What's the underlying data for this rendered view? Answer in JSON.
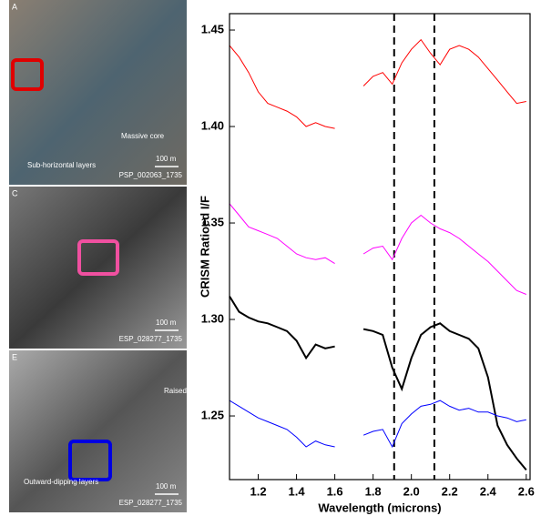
{
  "panels": [
    {
      "label": "A",
      "annotations": [
        "Massive core",
        "Sub-horizontal layers"
      ],
      "scale": "100 m",
      "image_id": "PSP_002063_1735",
      "box_color": "#e00000"
    },
    {
      "label": "C",
      "annotations": [],
      "scale": "100 m",
      "image_id": "ESP_028277_1735",
      "box_color": "#f050a0"
    },
    {
      "label": "E",
      "annotations": [
        "Raised rim",
        "Outward-dipping layers"
      ],
      "scale": "100 m",
      "image_id": "ESP_028277_1735",
      "box_color": "#0000e0"
    }
  ],
  "chart_data": {
    "type": "line",
    "xlabel": "Wavelength (microns)",
    "ylabel": "CRISM Ratioed I/F",
    "x": [
      1.05,
      1.1,
      1.15,
      1.2,
      1.25,
      1.3,
      1.35,
      1.4,
      1.45,
      1.5,
      1.55,
      1.6,
      1.65,
      1.7,
      1.75,
      1.8,
      1.85,
      1.9,
      1.95,
      2.0,
      2.05,
      2.1,
      2.15,
      2.2,
      2.25,
      2.3,
      2.35,
      2.4,
      2.45,
      2.5,
      2.55,
      2.6
    ],
    "series": [
      {
        "color": "#ff0000",
        "width": 1,
        "values": [
          1.442,
          1.436,
          1.428,
          1.418,
          1.412,
          1.41,
          1.408,
          1.405,
          1.4,
          1.402,
          1.4,
          1.399,
          null,
          null,
          1.421,
          1.426,
          1.428,
          1.422,
          1.433,
          1.44,
          1.445,
          1.438,
          1.432,
          1.44,
          1.442,
          1.44,
          1.436,
          1.43,
          1.424,
          1.418,
          1.412,
          1.413
        ]
      },
      {
        "color": "#ff00ff",
        "width": 1,
        "values": [
          1.36,
          1.354,
          1.348,
          1.346,
          1.344,
          1.342,
          1.338,
          1.334,
          1.332,
          1.331,
          1.332,
          1.329,
          null,
          null,
          1.334,
          1.337,
          1.338,
          1.331,
          1.342,
          1.35,
          1.354,
          1.35,
          1.347,
          1.345,
          1.342,
          1.338,
          1.334,
          1.33,
          1.325,
          1.32,
          1.315,
          1.313
        ]
      },
      {
        "color": "#000000",
        "width": 2,
        "values": [
          1.312,
          1.304,
          1.301,
          1.299,
          1.298,
          1.296,
          1.294,
          1.289,
          1.28,
          1.287,
          1.285,
          1.286,
          null,
          null,
          1.295,
          1.294,
          1.292,
          1.275,
          1.264,
          1.28,
          1.292,
          1.296,
          1.298,
          1.294,
          1.292,
          1.29,
          1.285,
          1.27,
          1.245,
          1.235,
          1.228,
          1.222
        ]
      },
      {
        "color": "#0000ff",
        "width": 1,
        "values": [
          1.258,
          1.255,
          1.252,
          1.249,
          1.247,
          1.245,
          1.243,
          1.239,
          1.234,
          1.237,
          1.235,
          1.234,
          null,
          null,
          1.24,
          1.242,
          1.243,
          1.234,
          1.246,
          1.251,
          1.255,
          1.256,
          1.258,
          1.255,
          1.253,
          1.254,
          1.252,
          1.252,
          1.25,
          1.249,
          1.247,
          1.248
        ]
      }
    ],
    "vlines": [
      1.91,
      2.12
    ],
    "xlim": [
      1.05,
      2.62
    ],
    "ylim": [
      1.217,
      1.4585
    ],
    "xticks": [
      1.2,
      1.4,
      1.6,
      1.8,
      {
        "value": 2,
        "label": "2.0"
      },
      2.2,
      2.4,
      2.6
    ],
    "yticks": [
      1.25,
      {
        "value": 1.3,
        "label": "1.30"
      },
      1.35,
      {
        "value": 1.4,
        "label": "1.40"
      },
      1.45
    ]
  }
}
